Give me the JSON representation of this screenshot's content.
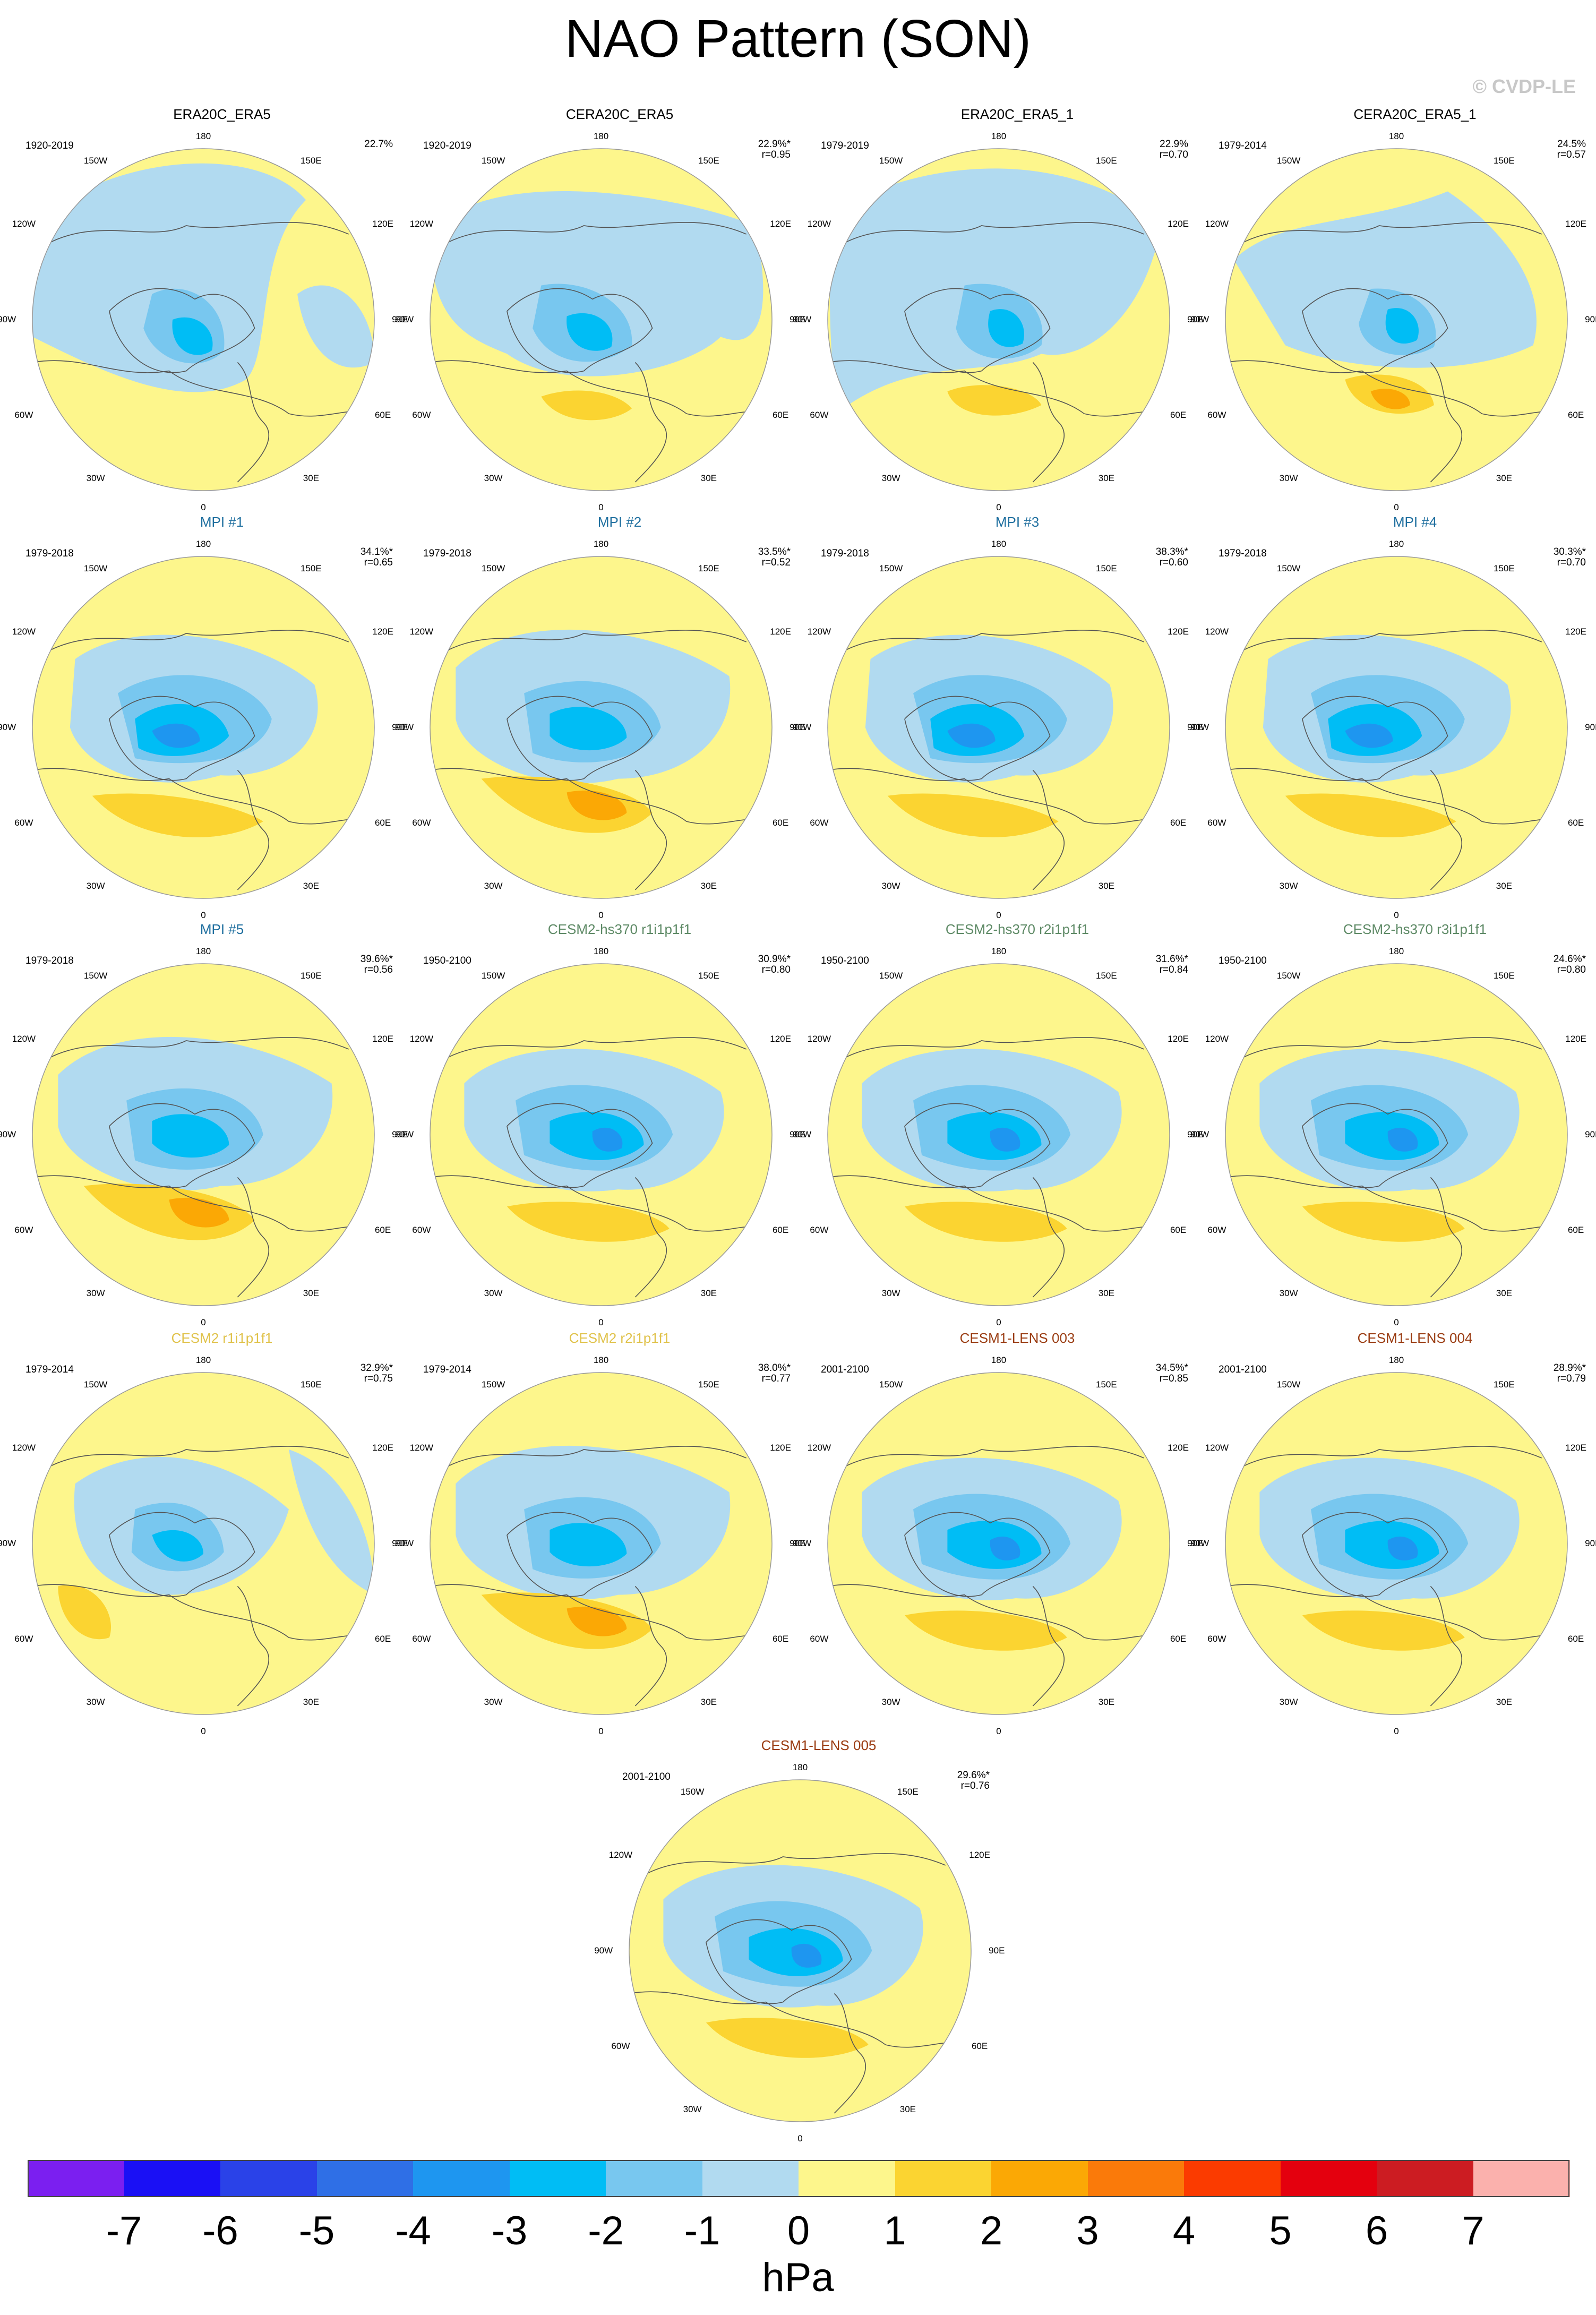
{
  "title": "NAO Pattern (SON)",
  "watermark": "© CVDP-LE",
  "lon_labels": {
    "top": "180",
    "bottom": "0",
    "upper_left": "150W",
    "upper_right": "150E",
    "left_upper": "120W",
    "right_upper": "120E",
    "left_mid": "90W",
    "right_mid": "90E",
    "left_lower": "60W",
    "right_lower": "60E",
    "lower_left": "30W",
    "lower_right": "30E"
  },
  "colors": {
    "title_obs": "#000000",
    "title_mpi": "#1f6f9f",
    "title_cesm2_hs370": "#5e8a66",
    "title_cesm2": "#e0c24a",
    "title_cesm1_lens": "#9a3c12",
    "coast": "#555555",
    "land_fill": "none"
  },
  "panels": [
    {
      "title": "ERA20C_ERA5",
      "title_color": "title_obs",
      "years": "1920-2019",
      "pct": "22.7%",
      "r": "",
      "pattern": 0
    },
    {
      "title": "CERA20C_ERA5",
      "title_color": "title_obs",
      "years": "1920-2019",
      "pct": "22.9%*",
      "r": "r=0.95",
      "pattern": 1
    },
    {
      "title": "ERA20C_ERA5_1",
      "title_color": "title_obs",
      "years": "1979-2019",
      "pct": "22.9%",
      "r": "r=0.70",
      "pattern": 2
    },
    {
      "title": "CERA20C_ERA5_1",
      "title_color": "title_obs",
      "years": "1979-2014",
      "pct": "24.5%",
      "r": "r=0.57",
      "pattern": 3
    },
    {
      "title": "MPI #1",
      "title_color": "title_mpi",
      "years": "1979-2018",
      "pct": "34.1%*",
      "r": "r=0.65",
      "pattern": 4
    },
    {
      "title": "MPI #2",
      "title_color": "title_mpi",
      "years": "1979-2018",
      "pct": "33.5%*",
      "r": "r=0.52",
      "pattern": 5
    },
    {
      "title": "MPI #3",
      "title_color": "title_mpi",
      "years": "1979-2018",
      "pct": "38.3%*",
      "r": "r=0.60",
      "pattern": 4
    },
    {
      "title": "MPI #4",
      "title_color": "title_mpi",
      "years": "1979-2018",
      "pct": "30.3%*",
      "r": "r=0.70",
      "pattern": 4
    },
    {
      "title": "MPI #5",
      "title_color": "title_mpi",
      "years": "1979-2018",
      "pct": "39.6%*",
      "r": "r=0.56",
      "pattern": 5
    },
    {
      "title": "CESM2-hs370 r1i1p1f1",
      "title_color": "title_cesm2_hs370",
      "years": "1950-2100",
      "pct": "30.9%*",
      "r": "r=0.80",
      "pattern": 6
    },
    {
      "title": "CESM2-hs370 r2i1p1f1",
      "title_color": "title_cesm2_hs370",
      "years": "1950-2100",
      "pct": "31.6%*",
      "r": "r=0.84",
      "pattern": 6
    },
    {
      "title": "CESM2-hs370 r3i1p1f1",
      "title_color": "title_cesm2_hs370",
      "years": "1950-2100",
      "pct": "24.6%*",
      "r": "r=0.80",
      "pattern": 6
    },
    {
      "title": "CESM2 r1i1p1f1",
      "title_color": "title_cesm2",
      "years": "1979-2014",
      "pct": "32.9%*",
      "r": "r=0.75",
      "pattern": 7
    },
    {
      "title": "CESM2 r2i1p1f1",
      "title_color": "title_cesm2",
      "years": "1979-2014",
      "pct": "38.0%*",
      "r": "r=0.77",
      "pattern": 5
    },
    {
      "title": "CESM1-LENS 003",
      "title_color": "title_cesm1_lens",
      "years": "2001-2100",
      "pct": "34.5%*",
      "r": "r=0.85",
      "pattern": 6
    },
    {
      "title": "CESM1-LENS 004",
      "title_color": "title_cesm1_lens",
      "years": "2001-2100",
      "pct": "28.9%*",
      "r": "r=0.79",
      "pattern": 6
    },
    {
      "title": "CESM1-LENS 005",
      "title_color": "title_cesm1_lens",
      "years": "2001-2100",
      "pct": "29.6%*",
      "r": "r=0.76",
      "pattern": 6
    }
  ],
  "colorbar": {
    "unit": "hPa",
    "ticks": [
      "-7",
      "-6",
      "-5",
      "-4",
      "-3",
      "-2",
      "-1",
      "0",
      "1",
      "2",
      "3",
      "4",
      "5",
      "6",
      "7"
    ],
    "colors": [
      "#7b1ff0",
      "#1a10f5",
      "#2a42e8",
      "#2f6fe6",
      "#1e96f0",
      "#00bdf5",
      "#78c7ef",
      "#b1daf0",
      "#fdf68c",
      "#fbd431",
      "#fba805",
      "#fa7a0a",
      "#fb3b00",
      "#e4000e",
      "#cc1c22",
      "#fbb1ad"
    ]
  }
}
